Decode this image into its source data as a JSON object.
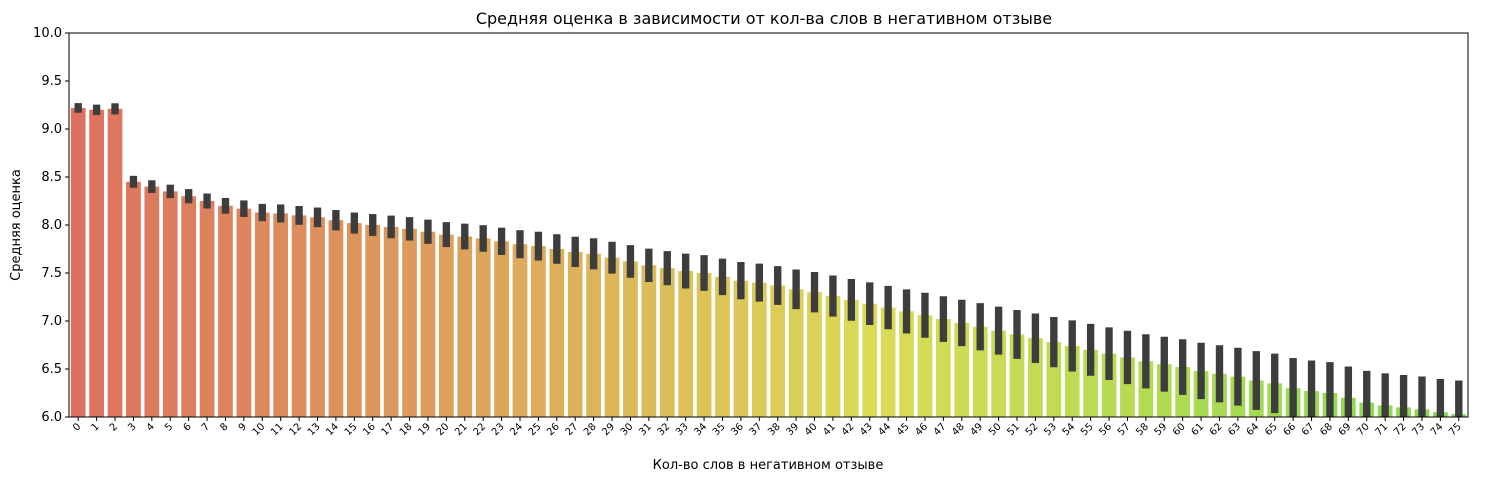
{
  "chart_data": {
    "type": "bar",
    "title": "Средняя оценка в зависимости от кол-ва слов в негативном отзыве",
    "xlabel": "Кол-во слов в негативном отзыве",
    "ylabel": "Средняя оценка",
    "ylim": [
      6.0,
      10.0
    ],
    "yticks": [
      "6.0",
      "6.5",
      "7.0",
      "7.5",
      "8.0",
      "8.5",
      "9.0",
      "9.5",
      "10.0"
    ],
    "x_start": 0,
    "values": [
      9.22,
      9.2,
      9.21,
      8.45,
      8.4,
      8.35,
      8.3,
      8.25,
      8.2,
      8.17,
      8.13,
      8.12,
      8.1,
      8.08,
      8.05,
      8.02,
      8.0,
      7.98,
      7.96,
      7.93,
      7.9,
      7.88,
      7.86,
      7.83,
      7.8,
      7.78,
      7.75,
      7.72,
      7.7,
      7.66,
      7.62,
      7.58,
      7.55,
      7.52,
      7.5,
      7.46,
      7.42,
      7.4,
      7.37,
      7.33,
      7.3,
      7.26,
      7.22,
      7.18,
      7.14,
      7.1,
      7.06,
      7.02,
      6.98,
      6.94,
      6.9,
      6.86,
      6.82,
      6.78,
      6.74,
      6.7,
      6.66,
      6.62,
      6.58,
      6.55,
      6.52,
      6.48,
      6.45,
      6.42,
      6.38,
      6.35,
      6.3,
      6.27,
      6.25,
      6.2,
      6.15,
      6.12,
      6.1,
      6.08,
      6.05,
      6.03
    ],
    "error_bars": "black"
  }
}
